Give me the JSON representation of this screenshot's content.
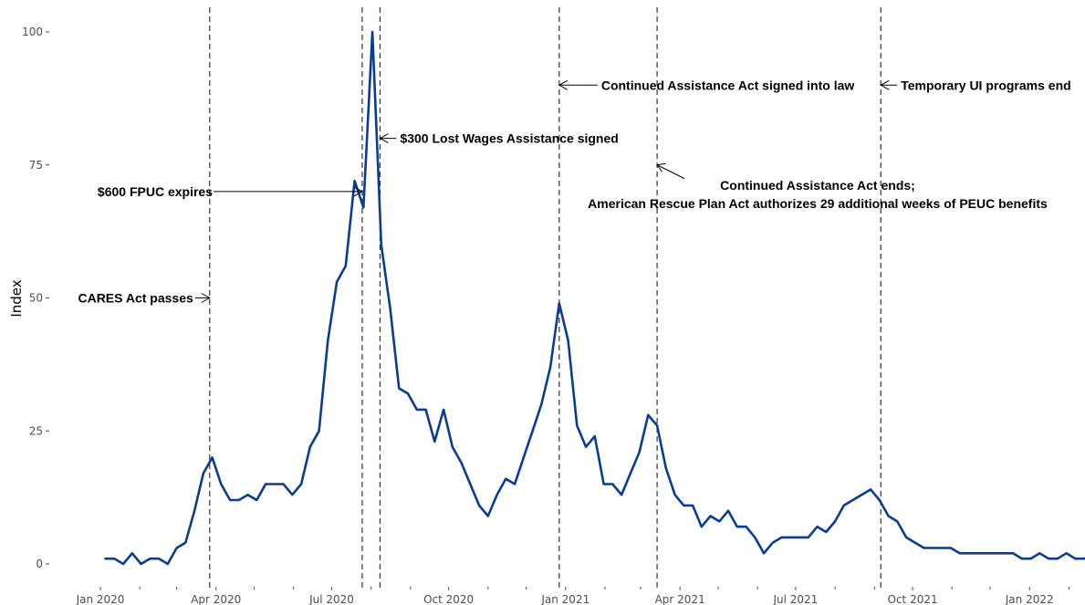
{
  "colors": {
    "series": "#0a3d91",
    "event_line": "#333333",
    "text": "#000000",
    "tick": "#4d4d4d"
  },
  "chart_data": {
    "type": "line",
    "title": "",
    "xlabel": "",
    "ylabel": "Index",
    "ylim": [
      0,
      100
    ],
    "xlim": [
      "2020-01-01",
      "2022-03-12"
    ],
    "y_ticks": [
      0,
      25,
      50,
      75,
      100
    ],
    "y_tick_labels": [
      "0",
      "25",
      "50",
      "75",
      "100"
    ],
    "x_ticks": [
      {
        "date": "2020-01-01",
        "label": "Jan 2020"
      },
      {
        "date": "2020-04-01",
        "label": "Apr 2020"
      },
      {
        "date": "2020-07-01",
        "label": "Jul 2020"
      },
      {
        "date": "2020-10-01",
        "label": "Oct 2020"
      },
      {
        "date": "2021-01-01",
        "label": "Jan 2021"
      },
      {
        "date": "2021-04-01",
        "label": "Apr 2021"
      },
      {
        "date": "2021-07-01",
        "label": "Jul 2021"
      },
      {
        "date": "2021-10-01",
        "label": "Oct 2021"
      },
      {
        "date": "2022-01-01",
        "label": "Jan 2022"
      }
    ],
    "x_minor_ticks": [
      "2020-02-01",
      "2020-03-01",
      "2020-05-01",
      "2020-06-01",
      "2020-08-01",
      "2020-09-01",
      "2020-11-01",
      "2020-12-01",
      "2021-02-01",
      "2021-03-01",
      "2021-05-01",
      "2021-06-01",
      "2021-08-01",
      "2021-09-01",
      "2021-11-01",
      "2021-12-01",
      "2022-02-01",
      "2022-03-01"
    ],
    "grid": false,
    "legend": "none",
    "series": [
      {
        "x": [
          "2020-01-05",
          "2020-01-12",
          "2020-01-19",
          "2020-01-26",
          "2020-02-02",
          "2020-02-09",
          "2020-02-16",
          "2020-02-23",
          "2020-03-01",
          "2020-03-08",
          "2020-03-15",
          "2020-03-22",
          "2020-03-29",
          "2020-04-05",
          "2020-04-12",
          "2020-04-19",
          "2020-04-26",
          "2020-05-03",
          "2020-05-10",
          "2020-05-17",
          "2020-05-24",
          "2020-05-31",
          "2020-06-07",
          "2020-06-14",
          "2020-06-21",
          "2020-06-28",
          "2020-07-05",
          "2020-07-12",
          "2020-07-19",
          "2020-07-26",
          "2020-08-02",
          "2020-08-09",
          "2020-08-16",
          "2020-08-23",
          "2020-08-30",
          "2020-09-06",
          "2020-09-13",
          "2020-09-20",
          "2020-09-27",
          "2020-10-04",
          "2020-10-11",
          "2020-10-18",
          "2020-10-25",
          "2020-11-01",
          "2020-11-08",
          "2020-11-15",
          "2020-11-22",
          "2020-11-29",
          "2020-12-06",
          "2020-12-13",
          "2020-12-20",
          "2020-12-27",
          "2021-01-03",
          "2021-01-10",
          "2021-01-17",
          "2021-01-24",
          "2021-01-31",
          "2021-02-07",
          "2021-02-14",
          "2021-02-21",
          "2021-02-28",
          "2021-03-07",
          "2021-03-14",
          "2021-03-21",
          "2021-03-28",
          "2021-04-04",
          "2021-04-11",
          "2021-04-18",
          "2021-04-25",
          "2021-05-02",
          "2021-05-09",
          "2021-05-16",
          "2021-05-23",
          "2021-05-30",
          "2021-06-06",
          "2021-06-13",
          "2021-06-20",
          "2021-06-27",
          "2021-07-04",
          "2021-07-11",
          "2021-07-18",
          "2021-07-25",
          "2021-08-01",
          "2021-08-08",
          "2021-08-15",
          "2021-08-22",
          "2021-08-29",
          "2021-09-05",
          "2021-09-12",
          "2021-09-19",
          "2021-09-26",
          "2021-10-03",
          "2021-10-10",
          "2021-10-17",
          "2021-10-24",
          "2021-10-31",
          "2021-11-07",
          "2021-11-14",
          "2021-11-21",
          "2021-11-28",
          "2021-12-05",
          "2021-12-12",
          "2021-12-19",
          "2021-12-26",
          "2022-01-02",
          "2022-01-09",
          "2022-01-16",
          "2022-01-23",
          "2022-01-30",
          "2022-02-06",
          "2022-02-13",
          "2022-02-20",
          "2022-02-27",
          "2022-03-06"
        ],
        "y": [
          1,
          1,
          0,
          2,
          0,
          1,
          1,
          0,
          3,
          4,
          10,
          17,
          20,
          15,
          12,
          12,
          13,
          12,
          15,
          15,
          15,
          13,
          15,
          22,
          25,
          42,
          53,
          56,
          72,
          67,
          100,
          60,
          48,
          33,
          32,
          29,
          29,
          23,
          29,
          22,
          19,
          15,
          11,
          9,
          13,
          16,
          15,
          20,
          25,
          30,
          37,
          49,
          42,
          26,
          22,
          24,
          15,
          15,
          13,
          17,
          21,
          28,
          26,
          18,
          13,
          11,
          11,
          7,
          9,
          8,
          10,
          7,
          7,
          5,
          2,
          4,
          5,
          5,
          5,
          5,
          7,
          6,
          8,
          11,
          12,
          13,
          14,
          12,
          9,
          8,
          5,
          4,
          3,
          3,
          3,
          3,
          2,
          2,
          2,
          2,
          2,
          2,
          2,
          1,
          1,
          2,
          1,
          1,
          2,
          1,
          1,
          2,
          1,
          0
        ]
      }
    ],
    "events": [
      {
        "date": "2020-03-27",
        "label": "CARES Act passes",
        "label_y": 50,
        "side": "left"
      },
      {
        "date": "2020-07-25",
        "label": "$600 FPUC expires",
        "label_y": 70,
        "side": "left"
      },
      {
        "date": "2020-08-08",
        "label": "$300 Lost Wages Assistance signed",
        "label_y": 80,
        "side": "right"
      },
      {
        "date": "2020-12-27",
        "label": "Continued Assistance Act signed into law",
        "label_y": 90,
        "side": "right"
      },
      {
        "date": "2021-03-14",
        "label_lines": [
          "Continued Assistance Act ends;",
          "American Rescue Plan Act authorizes 29 additional weeks of PEUC benefits"
        ],
        "label_y": 75,
        "side": "below-right"
      },
      {
        "date": "2021-09-06",
        "label": "Temporary UI programs end",
        "label_y": 90,
        "side": "right"
      }
    ]
  }
}
